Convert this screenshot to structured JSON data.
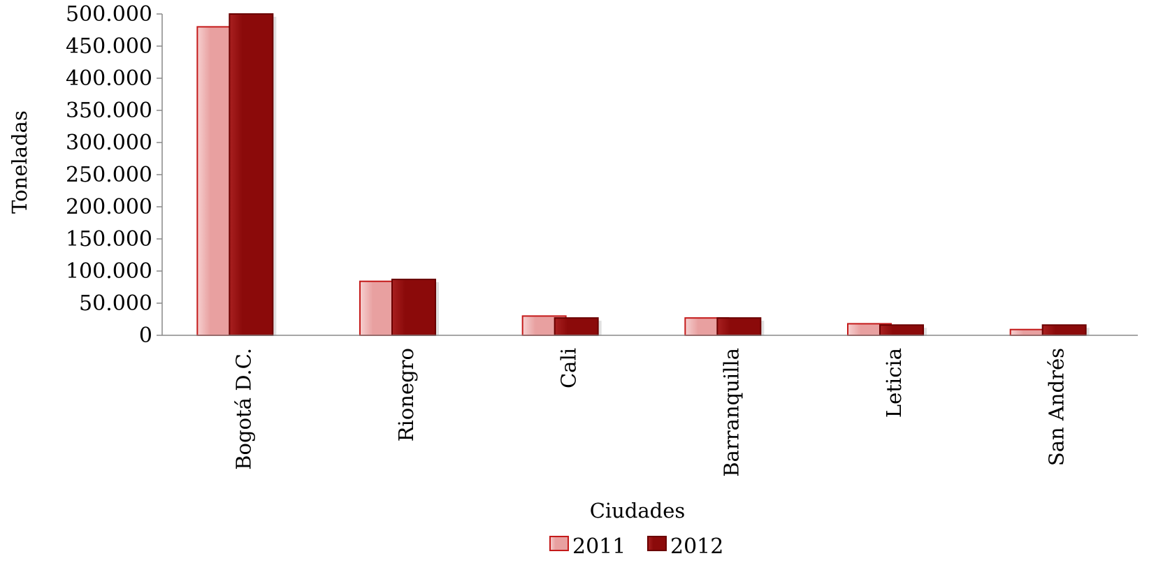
{
  "chart_data": {
    "type": "bar",
    "title": "",
    "xlabel": "Ciudades",
    "ylabel": "Toneladas",
    "categories": [
      "Bogotá D.C.",
      "Rionegro",
      "Cali",
      "Barranquilla",
      "Leticia",
      "San Andrés"
    ],
    "series": [
      {
        "name": "2011",
        "values": [
          480000,
          84000,
          30000,
          27000,
          18000,
          9000
        ],
        "color": "#e8a0a0"
      },
      {
        "name": "2012",
        "values": [
          500000,
          87000,
          27000,
          27000,
          16000,
          16000
        ],
        "color": "#8b0a0a"
      }
    ],
    "ylim": [
      0,
      500000
    ],
    "yticks": [
      0,
      50000,
      100000,
      150000,
      200000,
      250000,
      300000,
      350000,
      400000,
      450000,
      500000
    ],
    "ytick_labels": [
      "0",
      "50.000",
      "100.000",
      "150.000",
      "200.000",
      "250.000",
      "300.000",
      "350.000",
      "400.000",
      "450.000",
      "500.000"
    ],
    "grid": false,
    "legend_position": "bottom"
  }
}
